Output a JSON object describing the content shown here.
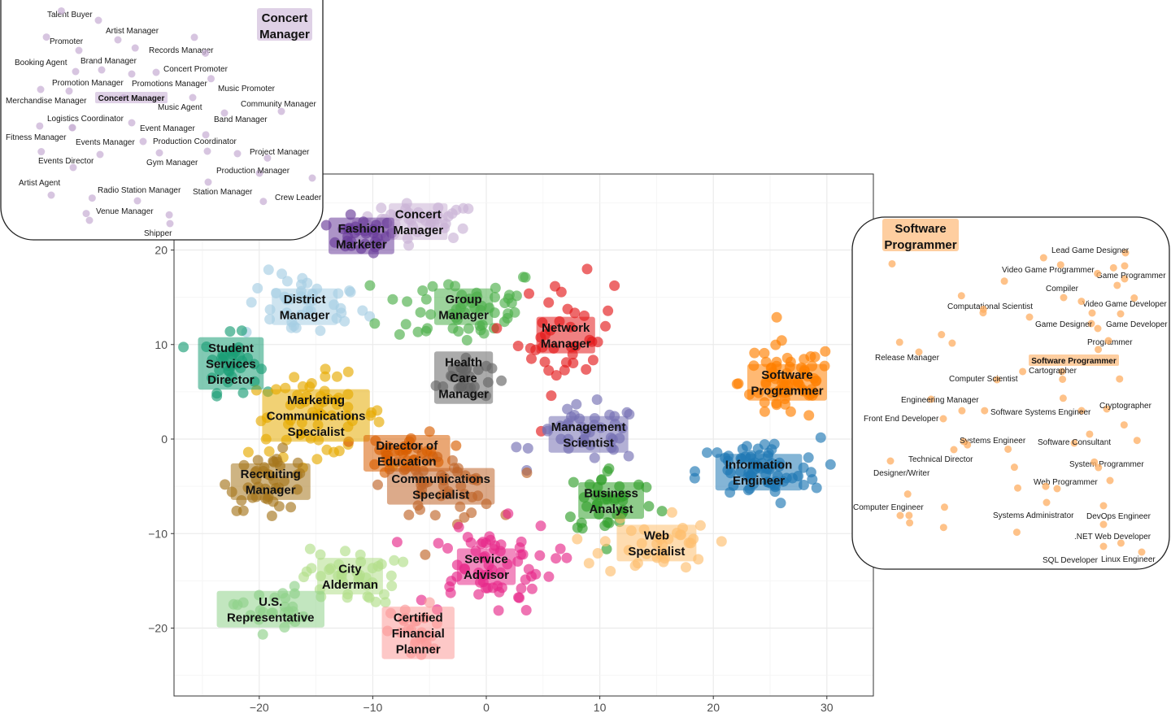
{
  "chart_data": {
    "type": "scatter",
    "title": "",
    "xlabel": "",
    "ylabel": "",
    "xlim": [
      -27,
      34
    ],
    "ylim": [
      -27,
      28
    ],
    "x_ticks": [
      -20,
      -10,
      0,
      10,
      20,
      30
    ],
    "y_ticks": [
      -20,
      -10,
      0,
      10,
      20
    ],
    "x_tick_labels": [
      "−20",
      "−10",
      "0",
      "10",
      "20",
      "30"
    ],
    "y_tick_labels": [
      "−20",
      "−10",
      "0",
      "10",
      "20"
    ],
    "grid": true,
    "legend": "none",
    "clusters": [
      {
        "name": "Concert Manager",
        "label_lines": [
          "Concert",
          "Manager"
        ],
        "color": "#cab2d6",
        "center": [
          -6,
          23
        ],
        "spread": [
          4.5,
          1.6
        ],
        "n": 45
      },
      {
        "name": "Fashion Marketer",
        "label_lines": [
          "Fashion",
          "Marketer"
        ],
        "color": "#6a3d9a",
        "center": [
          -11,
          21.5
        ],
        "spread": [
          2.5,
          1.5
        ],
        "n": 30
      },
      {
        "name": "District Manager",
        "label_lines": [
          "District",
          "Manager"
        ],
        "color": "#a6cee3",
        "center": [
          -16,
          14
        ],
        "spread": [
          4.5,
          3
        ],
        "n": 40
      },
      {
        "name": "Group Manager",
        "label_lines": [
          "Group",
          "Manager"
        ],
        "color": "#4daf4a",
        "center": [
          -2,
          14
        ],
        "spread": [
          6,
          3.5
        ],
        "n": 55
      },
      {
        "name": "Student Services Director",
        "label_lines": [
          "Student",
          "Services",
          "Director"
        ],
        "color": "#1b9e77",
        "center": [
          -22.5,
          8
        ],
        "spread": [
          2,
          2.5
        ],
        "n": 35
      },
      {
        "name": "Health Care Manager",
        "label_lines": [
          "Health",
          "Care",
          "Manager"
        ],
        "color": "#666666",
        "center": [
          -2,
          6.5
        ],
        "spread": [
          2,
          2
        ],
        "n": 30
      },
      {
        "name": "Network Manager",
        "label_lines": [
          "Network",
          "Manager"
        ],
        "color": "#e41a1c",
        "center": [
          7,
          11
        ],
        "spread": [
          3.5,
          5
        ],
        "n": 40
      },
      {
        "name": "Marketing Communications Specialist",
        "label_lines": [
          "Marketing",
          "Communications",
          "Specialist"
        ],
        "color": "#e6ab02",
        "center": [
          -15,
          2.5
        ],
        "spread": [
          5,
          3.5
        ],
        "n": 60
      },
      {
        "name": "Software Programmer",
        "label_lines": [
          "Software",
          "Programmer"
        ],
        "color": "#ff7f00",
        "center": [
          26.5,
          6
        ],
        "spread": [
          3.5,
          3.5
        ],
        "n": 70
      },
      {
        "name": "Management Scientist",
        "label_lines": [
          "Management",
          "Scientist"
        ],
        "color": "#7570b3",
        "center": [
          9,
          0.5
        ],
        "spread": [
          4,
          2.5
        ],
        "n": 40
      },
      {
        "name": "Director of Education",
        "label_lines": [
          "Director of",
          "Education"
        ],
        "color": "#d95f02",
        "center": [
          -7,
          -1.5
        ],
        "spread": [
          3,
          2
        ],
        "n": 35
      },
      {
        "name": "Recruiting Manager",
        "label_lines": [
          "Recruiting",
          "Manager"
        ],
        "color": "#a6761d",
        "center": [
          -19,
          -4.5
        ],
        "spread": [
          3,
          2.5
        ],
        "n": 40
      },
      {
        "name": "Communications Specialist",
        "label_lines": [
          "Communications",
          "Specialist"
        ],
        "color": "#c0652a",
        "center": [
          -4,
          -5
        ],
        "spread": [
          4,
          3
        ],
        "n": 45
      },
      {
        "name": "Information Engineer",
        "label_lines": [
          "Information",
          "Engineer"
        ],
        "color": "#1f78b4",
        "center": [
          24,
          -3.5
        ],
        "spread": [
          4.5,
          3
        ],
        "n": 70
      },
      {
        "name": "Business Analyst",
        "label_lines": [
          "Business",
          "Analyst"
        ],
        "color": "#33a02c",
        "center": [
          11,
          -6.5
        ],
        "spread": [
          3.5,
          3
        ],
        "n": 40
      },
      {
        "name": "Web Specialist",
        "label_lines": [
          "Web",
          "Specialist"
        ],
        "color": "#fdbf6f",
        "center": [
          15,
          -11
        ],
        "spread": [
          4,
          3
        ],
        "n": 35
      },
      {
        "name": "Service Advisor",
        "label_lines": [
          "Service",
          "Advisor"
        ],
        "color": "#e7298a",
        "center": [
          0,
          -13.5
        ],
        "spread": [
          5,
          4
        ],
        "n": 65
      },
      {
        "name": "City Alderman",
        "label_lines": [
          "City",
          "Alderman"
        ],
        "color": "#b2df8a",
        "center": [
          -12,
          -14.5
        ],
        "spread": [
          3.5,
          2.5
        ],
        "n": 40
      },
      {
        "name": "U.S. Representative",
        "label_lines": [
          "U.S.",
          "Representative"
        ],
        "color": "#8fd18a",
        "center": [
          -19,
          -18
        ],
        "spread": [
          2.5,
          2
        ],
        "n": 25
      },
      {
        "name": "Certified Financial Planner",
        "label_lines": [
          "Certified",
          "Financial",
          "Planner"
        ],
        "color": "#fb9a99",
        "center": [
          -6,
          -20.5
        ],
        "spread": [
          2,
          2.5
        ],
        "n": 30
      }
    ],
    "insets": [
      {
        "title_lines": [
          "Concert",
          "Manager"
        ],
        "center_label": "Concert Manager",
        "color": "#cab2d6",
        "labels": [
          "Talent Buyer",
          "Artist Manager",
          "Promoter",
          "Records Manager",
          "Brand Manager",
          "Booking Agent",
          "Concert Promoter",
          "Promotion Manager",
          "Promotions Manager",
          "Music Promoter",
          "Merchandise Manager",
          "Music Agent",
          "Community Manager",
          "Band Manager",
          "Logistics Coordinator",
          "Event Manager",
          "Fitness Manager",
          "Events Manager",
          "Production Coordinator",
          "Project Manager",
          "Events Director",
          "Gym Manager",
          "Production Manager",
          "Artist Agent",
          "Radio Station Manager",
          "Station Manager",
          "Crew Leader",
          "Venue Manager",
          "Shipper"
        ]
      },
      {
        "title_lines": [
          "Software",
          "Programmer"
        ],
        "center_label": "Software Programmer",
        "color": "#fdae61",
        "labels": [
          "Lead Game Designer",
          "Video Game Programmer",
          "Game Programmer",
          "Compiler",
          "Computational Scientist",
          "Video Game Developer",
          "Game Designer",
          "Game Developer",
          "Programmer",
          "Release Manager",
          "Cartographer",
          "Computer Scientist",
          "Engineering Manager",
          "Cryptographer",
          "Software Systems Engineer",
          "Front End Developer",
          "Systems Engineer",
          "Software Consultant",
          "Technical Director",
          "Designer/Writer",
          "System Programmer",
          "Web Programmer",
          "Computer Engineer",
          "Systems Administrator",
          "DevOps Engineer",
          ".NET Web Developer",
          "SQL Developer",
          "Linux Engineer"
        ]
      }
    ]
  }
}
